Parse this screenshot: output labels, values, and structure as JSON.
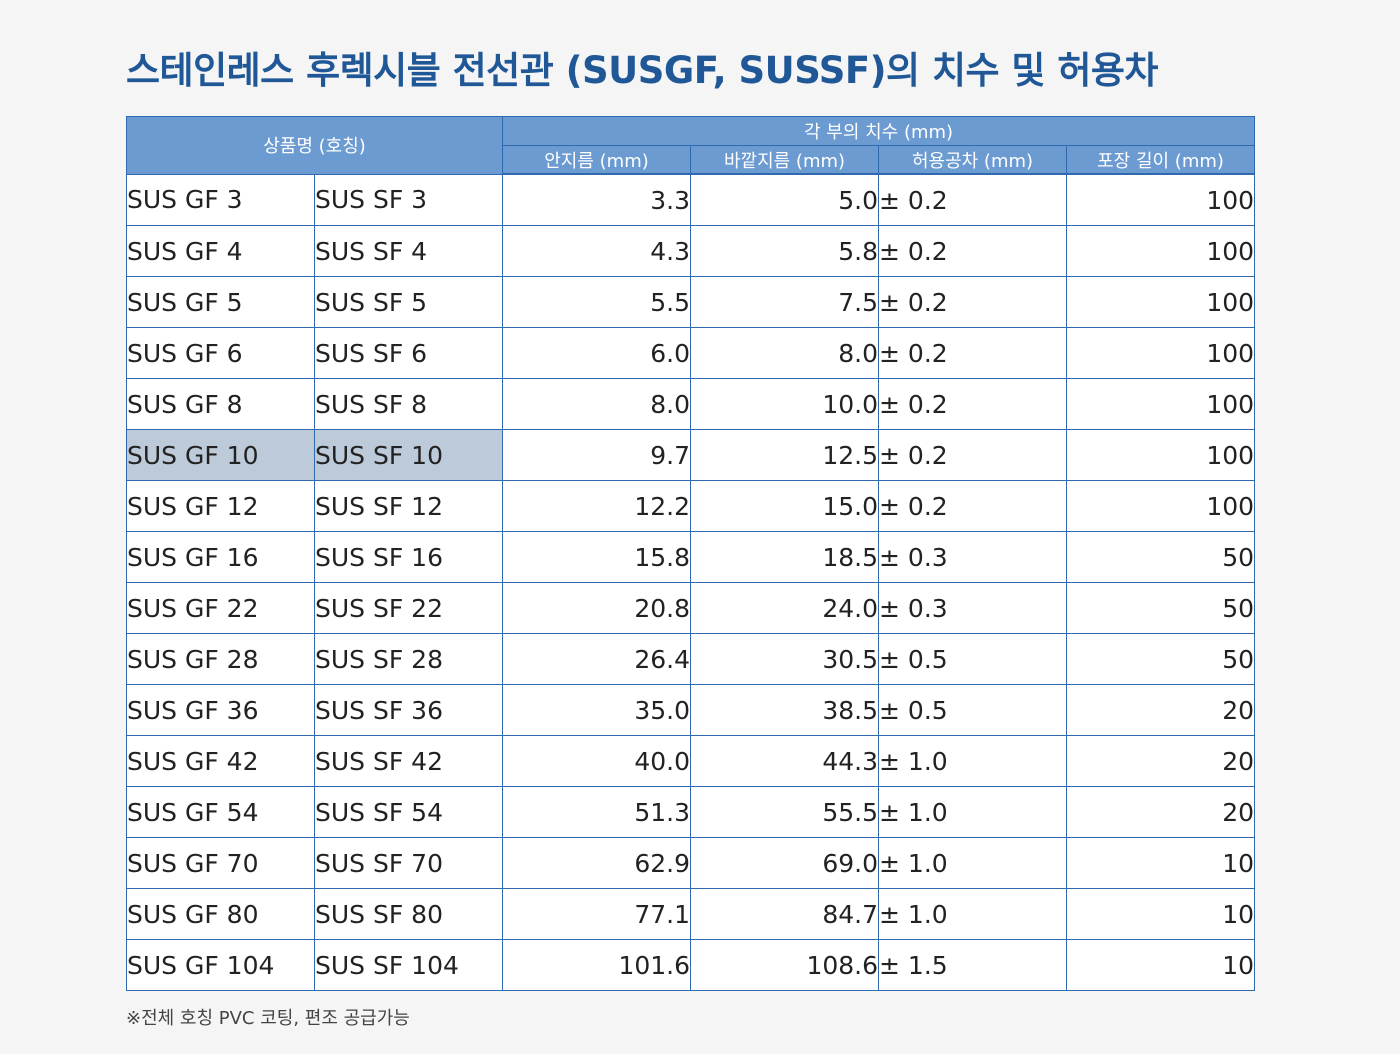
{
  "title": "스테인레스 후렉시블 전선관 (SUSGF, SUSSF)의 치수 및 허용차",
  "header": {
    "product_name": "상품명 (호칭)",
    "dimensions_group": "각 부의 치수 (mm)",
    "inner_diameter": "안지름 (mm)",
    "outer_diameter": "바깥지름 (mm)",
    "tolerance": "허용공차 (mm)",
    "package_length": "포장 길이 (mm)"
  },
  "rows": [
    {
      "gf": "SUS GF 3",
      "sf": "SUS SF 3",
      "inner": "3.3",
      "outer": "5.0",
      "tol": "± 0.2",
      "len": "100"
    },
    {
      "gf": "SUS GF 4",
      "sf": "SUS SF 4",
      "inner": "4.3",
      "outer": "5.8",
      "tol": "± 0.2",
      "len": "100"
    },
    {
      "gf": "SUS GF 5",
      "sf": "SUS SF 5",
      "inner": "5.5",
      "outer": "7.5",
      "tol": "± 0.2",
      "len": "100"
    },
    {
      "gf": "SUS GF 6",
      "sf": "SUS SF 6",
      "inner": "6.0",
      "outer": "8.0",
      "tol": "± 0.2",
      "len": "100"
    },
    {
      "gf": "SUS GF 8",
      "sf": "SUS SF 8",
      "inner": "8.0",
      "outer": "10.0",
      "tol": "± 0.2",
      "len": "100"
    },
    {
      "gf": "SUS GF 10",
      "sf": "SUS SF 10",
      "inner": "9.7",
      "outer": "12.5",
      "tol": "± 0.2",
      "len": "100",
      "highlight": true
    },
    {
      "gf": "SUS GF 12",
      "sf": "SUS SF 12",
      "inner": "12.2",
      "outer": "15.0",
      "tol": "± 0.2",
      "len": "100"
    },
    {
      "gf": "SUS GF 16",
      "sf": "SUS SF 16",
      "inner": "15.8",
      "outer": "18.5",
      "tol": "± 0.3",
      "len": "50"
    },
    {
      "gf": "SUS GF 22",
      "sf": "SUS SF 22",
      "inner": "20.8",
      "outer": "24.0",
      "tol": "± 0.3",
      "len": "50"
    },
    {
      "gf": "SUS GF 28",
      "sf": "SUS SF 28",
      "inner": "26.4",
      "outer": "30.5",
      "tol": "± 0.5",
      "len": "50"
    },
    {
      "gf": "SUS GF 36",
      "sf": "SUS SF 36",
      "inner": "35.0",
      "outer": "38.5",
      "tol": "± 0.5",
      "len": "20"
    },
    {
      "gf": "SUS GF 42",
      "sf": "SUS SF 42",
      "inner": "40.0",
      "outer": "44.3",
      "tol": "± 1.0",
      "len": "20"
    },
    {
      "gf": "SUS GF 54",
      "sf": "SUS SF 54",
      "inner": "51.3",
      "outer": "55.5",
      "tol": "± 1.0",
      "len": "20"
    },
    {
      "gf": "SUS GF 70",
      "sf": "SUS SF 70",
      "inner": "62.9",
      "outer": "69.0",
      "tol": "± 1.0",
      "len": "10"
    },
    {
      "gf": "SUS GF 80",
      "sf": "SUS SF 80",
      "inner": "77.1",
      "outer": "84.7",
      "tol": "± 1.0",
      "len": "10"
    },
    {
      "gf": "SUS GF 104",
      "sf": "SUS SF 104",
      "inner": "101.6",
      "outer": "108.6",
      "tol": "± 1.5",
      "len": "10"
    }
  ],
  "note": "※전체 호칭 PVC 코팅, 편조 공급가능",
  "colors": {
    "title": "#1f5797",
    "header_bg": "#6c9bd1",
    "border": "#2f6aae",
    "highlight_bg": "#bccad9"
  }
}
